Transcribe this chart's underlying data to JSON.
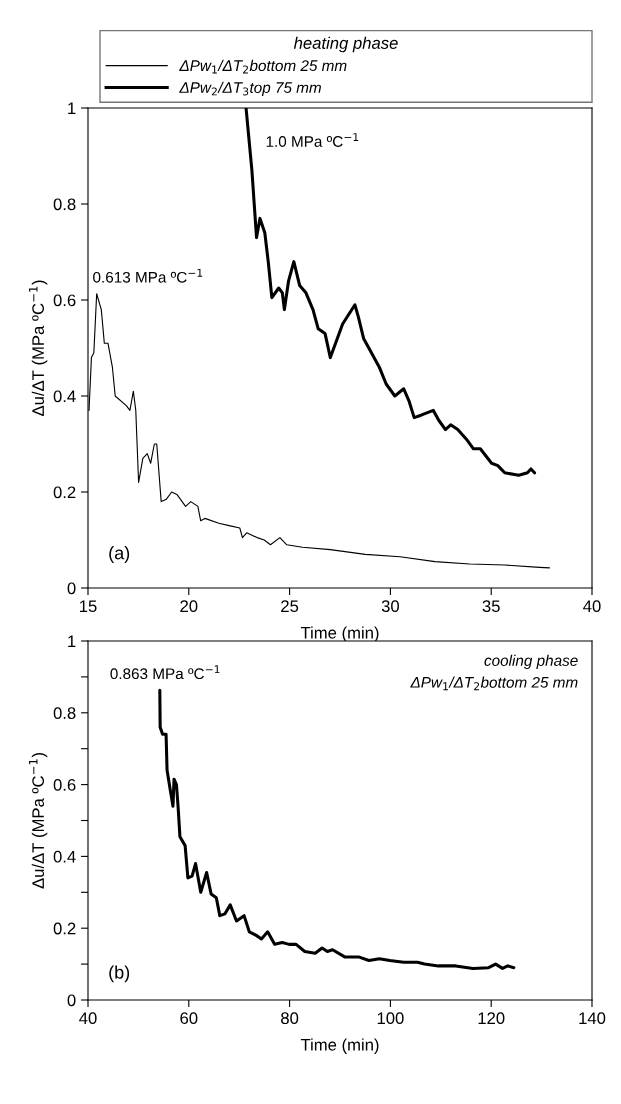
{
  "chart_data": [
    {
      "type": "line",
      "legend_title": "heating phase",
      "legend": "top",
      "xlabel": "Time (min)",
      "ylabel": "Δu/ΔT (MPa ºC$^{−1}$)",
      "xlim": [
        15,
        40
      ],
      "xticks": [
        15,
        20,
        25,
        30,
        35,
        40
      ],
      "ylim": [
        0,
        1
      ],
      "yticks": [
        0,
        0.2,
        0.4,
        0.6,
        0.8,
        1
      ],
      "grid": false,
      "annotations": [
        {
          "text": "0.613 MPa ºC$^{−1}$",
          "x": 15.43,
          "y": 0.613
        },
        {
          "text": "1.0 MPa ºC$^{−1}$",
          "x": 22.84,
          "y": 1.0
        },
        "(a)"
      ],
      "series": [
        {
          "name": "ΔPw$_{1}$/ΔT$_{2}$bottom 25 mm",
          "color": "#000000",
          "x": [
            15.05,
            15.17,
            15.29,
            15.43,
            15.66,
            15.81,
            15.99,
            16.21,
            16.35,
            16.9,
            17.08,
            17.25,
            17.37,
            17.51,
            17.72,
            17.94,
            18.11,
            18.29,
            18.41,
            18.63,
            18.89,
            19.15,
            19.41,
            19.84,
            20.1,
            20.45,
            20.59,
            20.8,
            21.49,
            22.0,
            22.53,
            22.66,
            22.87,
            23.39,
            23.74,
            24.05,
            24.52,
            24.86,
            25.64,
            27.02,
            28.75,
            30.48,
            32.21,
            33.94,
            35.67,
            37.4,
            37.89
          ],
          "values": [
            0.37,
            0.48,
            0.49,
            0.613,
            0.58,
            0.51,
            0.51,
            0.46,
            0.4,
            0.38,
            0.37,
            0.41,
            0.37,
            0.22,
            0.27,
            0.28,
            0.26,
            0.3,
            0.3,
            0.18,
            0.185,
            0.2,
            0.195,
            0.17,
            0.18,
            0.17,
            0.14,
            0.145,
            0.135,
            0.13,
            0.125,
            0.105,
            0.115,
            0.105,
            0.1,
            0.09,
            0.105,
            0.09,
            0.085,
            0.08,
            0.07,
            0.065,
            0.055,
            0.05,
            0.048,
            0.043,
            0.042
          ]
        },
        {
          "name": "ΔPw$_{2}$/ΔT$_{3}$top 75 mm",
          "color": "#000000",
          "x": [
            22.84,
            23.13,
            23.36,
            23.53,
            23.77,
            23.94,
            24.12,
            24.46,
            24.64,
            24.74,
            24.95,
            25.21,
            25.5,
            25.81,
            26.16,
            26.42,
            26.76,
            27.02,
            27.28,
            27.63,
            28.24,
            28.41,
            28.67,
            28.93,
            29.45,
            29.79,
            30.22,
            30.66,
            30.92,
            31.18,
            31.52,
            32.13,
            32.39,
            32.73,
            32.99,
            33.34,
            33.77,
            34.12,
            34.46,
            35.02,
            35.33,
            35.67,
            36.37,
            36.8,
            36.97,
            37.15
          ],
          "values": [
            1.0,
            0.87,
            0.73,
            0.77,
            0.74,
            0.68,
            0.605,
            0.625,
            0.615,
            0.58,
            0.64,
            0.68,
            0.63,
            0.615,
            0.58,
            0.54,
            0.53,
            0.48,
            0.51,
            0.55,
            0.59,
            0.565,
            0.52,
            0.5,
            0.46,
            0.425,
            0.4,
            0.415,
            0.39,
            0.355,
            0.36,
            0.37,
            0.35,
            0.33,
            0.34,
            0.33,
            0.31,
            0.29,
            0.29,
            0.26,
            0.255,
            0.24,
            0.235,
            0.24,
            0.248,
            0.24
          ]
        }
      ]
    },
    {
      "type": "line",
      "legend_title": "cooling phase",
      "legend": "top right",
      "xlabel": "Time (min)",
      "ylabel": "Δu/ΔT (MPa ºC$^{−1}$)",
      "xlim": [
        40,
        140
      ],
      "xticks": [
        40,
        60,
        80,
        100,
        120,
        140
      ],
      "ylim": [
        0,
        1
      ],
      "yticks": [
        0,
        {
          "value": 0.1,
          "label": null
        },
        0.2,
        {
          "value": 0.3,
          "label": null
        },
        0.4,
        {
          "value": 0.5,
          "label": null
        },
        0.6,
        {
          "value": 0.7,
          "label": null
        },
        0.8,
        {
          "value": 0.9,
          "label": null
        },
        1
      ],
      "grid": false,
      "annotations": [
        {
          "text": "0.863 MPa ºC$^{−1}$",
          "x": 54.25,
          "y": 0.863
        },
        "(b)"
      ],
      "series": [
        {
          "name": "ΔPw$_{1}$/ΔT$_{2}$bottom 25 mm",
          "color": "#000000",
          "x": [
            54.25,
            54.32,
            54.8,
            55.49,
            55.69,
            56.38,
            56.86,
            57.07,
            57.55,
            57.89,
            58.24,
            59.27,
            59.82,
            60.65,
            61.34,
            62.37,
            63.54,
            64.43,
            65.46,
            66.15,
            67.18,
            68.22,
            69.46,
            70.97,
            72.0,
            73.38,
            74.41,
            75.65,
            77.03,
            78.54,
            79.92,
            81.29,
            83.01,
            85.07,
            86.45,
            87.49,
            88.52,
            90.93,
            93.68,
            95.75,
            97.81,
            99.88,
            102.63,
            105.38,
            106.76,
            109.51,
            112.95,
            116.39,
            119.49,
            120.87,
            122.25,
            123.28,
            124.5
          ],
          "values": [
            0.863,
            0.76,
            0.74,
            0.74,
            0.64,
            0.58,
            0.54,
            0.615,
            0.6,
            0.535,
            0.455,
            0.43,
            0.34,
            0.345,
            0.38,
            0.3,
            0.355,
            0.295,
            0.285,
            0.235,
            0.24,
            0.265,
            0.22,
            0.235,
            0.19,
            0.18,
            0.17,
            0.19,
            0.155,
            0.16,
            0.155,
            0.155,
            0.135,
            0.13,
            0.145,
            0.135,
            0.14,
            0.12,
            0.12,
            0.11,
            0.115,
            0.11,
            0.105,
            0.105,
            0.1,
            0.095,
            0.095,
            0.088,
            0.09,
            0.1,
            0.088,
            0.095,
            0.09
          ]
        }
      ]
    }
  ]
}
